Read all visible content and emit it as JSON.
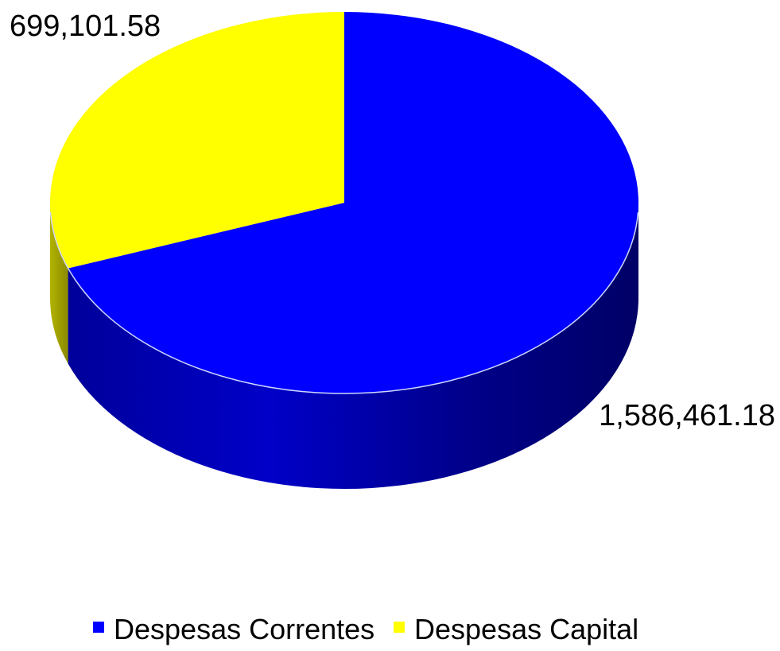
{
  "chart_data": {
    "type": "pie",
    "style": "3d",
    "categories": [
      "Despesas Correntes",
      "Despesas Capital"
    ],
    "values": [
      1586461.18,
      699101.58
    ],
    "value_labels": [
      "1,586,461.18",
      "699,101.58"
    ],
    "colors": [
      "#0000ff",
      "#ffff00"
    ],
    "legend": {
      "position": "bottom",
      "entries": [
        "Despesas Correntes",
        "Despesas Capital"
      ]
    }
  }
}
